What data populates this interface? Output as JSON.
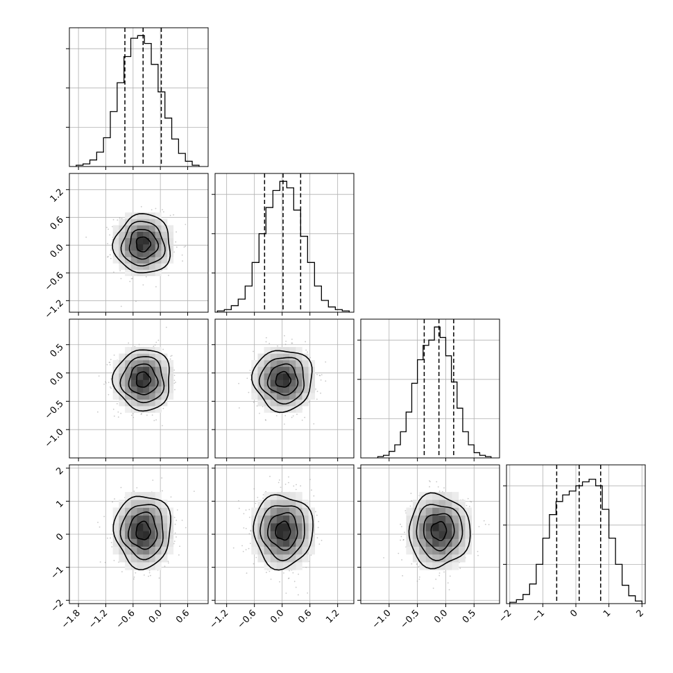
{
  "chart_data": {
    "type": "corner",
    "title": "",
    "grid": true,
    "parameters": [
      {
        "name": "",
        "range": [
          -2.0,
          1.05
        ],
        "ticks": [
          -1.8,
          -1.2,
          -0.6,
          0.0,
          0.6
        ],
        "tick_labels": [
          "−1.8",
          "−1.2",
          "−0.6",
          "0.0",
          "0.6"
        ],
        "quantiles": [
          -0.78,
          -0.38,
          0.02
        ],
        "hist": {
          "edges": [
            -1.85,
            -1.7,
            -1.55,
            -1.4,
            -1.25,
            -1.1,
            -0.95,
            -0.8,
            -0.65,
            -0.5,
            -0.35,
            -0.2,
            -0.05,
            0.1,
            0.25,
            0.4,
            0.55,
            0.7,
            0.85
          ],
          "counts": [
            0.01,
            0.02,
            0.05,
            0.11,
            0.22,
            0.42,
            0.64,
            0.84,
            0.98,
            1.0,
            0.94,
            0.78,
            0.57,
            0.37,
            0.21,
            0.1,
            0.04,
            0.01
          ]
        }
      },
      {
        "name": "",
        "range": [
          -1.45,
          1.55
        ],
        "ticks": [
          -1.2,
          -0.6,
          0.0,
          0.6,
          1.2
        ],
        "tick_labels": [
          "−1.2",
          "−0.6",
          "0.0",
          "0.6",
          "1.2"
        ],
        "quantiles": [
          -0.38,
          0.02,
          0.4
        ],
        "hist": {
          "edges": [
            -1.4,
            -1.25,
            -1.1,
            -0.95,
            -0.8,
            -0.65,
            -0.5,
            -0.35,
            -0.2,
            -0.05,
            0.1,
            0.25,
            0.4,
            0.55,
            0.7,
            0.85,
            1.0,
            1.15,
            1.3,
            1.45
          ],
          "counts": [
            0.01,
            0.02,
            0.05,
            0.1,
            0.2,
            0.38,
            0.6,
            0.8,
            0.93,
            1.0,
            0.95,
            0.78,
            0.58,
            0.38,
            0.2,
            0.09,
            0.04,
            0.02,
            0.01
          ]
        }
      },
      {
        "name": "",
        "range": [
          -1.5,
          0.95
        ],
        "ticks": [
          -1.0,
          -0.5,
          0.0,
          0.5
        ],
        "tick_labels": [
          "−1.0",
          "−0.5",
          "0.0",
          "0.5"
        ],
        "quantiles": [
          -0.38,
          -0.12,
          0.14
        ],
        "hist": {
          "edges": [
            -1.2,
            -1.1,
            -1.0,
            -0.9,
            -0.8,
            -0.7,
            -0.6,
            -0.5,
            -0.4,
            -0.3,
            -0.2,
            -0.1,
            0.0,
            0.1,
            0.2,
            0.3,
            0.4,
            0.5,
            0.6,
            0.7,
            0.8
          ],
          "counts": [
            0.01,
            0.02,
            0.05,
            0.1,
            0.2,
            0.35,
            0.57,
            0.75,
            0.86,
            0.9,
            1.0,
            0.92,
            0.78,
            0.58,
            0.38,
            0.2,
            0.1,
            0.04,
            0.02,
            0.01
          ]
        }
      },
      {
        "name": "",
        "range": [
          -2.1,
          2.1
        ],
        "ticks": [
          -2,
          -1,
          0,
          1,
          2
        ],
        "tick_labels": [
          "−2",
          "−1",
          "0",
          "1",
          "2"
        ],
        "quantiles": [
          -0.58,
          0.1,
          0.75
        ],
        "hist": {
          "edges": [
            -2.0,
            -1.8,
            -1.6,
            -1.4,
            -1.2,
            -1.0,
            -0.8,
            -0.6,
            -0.4,
            -0.2,
            0.0,
            0.2,
            0.4,
            0.6,
            0.8,
            1.0,
            1.2,
            1.4,
            1.6,
            1.8,
            2.0
          ],
          "counts": [
            0.01,
            0.03,
            0.07,
            0.15,
            0.3,
            0.5,
            0.68,
            0.78,
            0.83,
            0.86,
            0.9,
            0.93,
            0.95,
            0.9,
            0.72,
            0.5,
            0.3,
            0.14,
            0.06,
            0.02
          ]
        }
      }
    ],
    "density_2d": {
      "means": [
        -0.38,
        0.02,
        -0.12,
        0.1
      ],
      "sigmas": [
        0.31,
        0.32,
        0.27,
        0.55
      ],
      "contour_levels_sigma": [
        0.5,
        1.0,
        1.5,
        2.0
      ],
      "scatter_points_per_panel": 650
    }
  }
}
